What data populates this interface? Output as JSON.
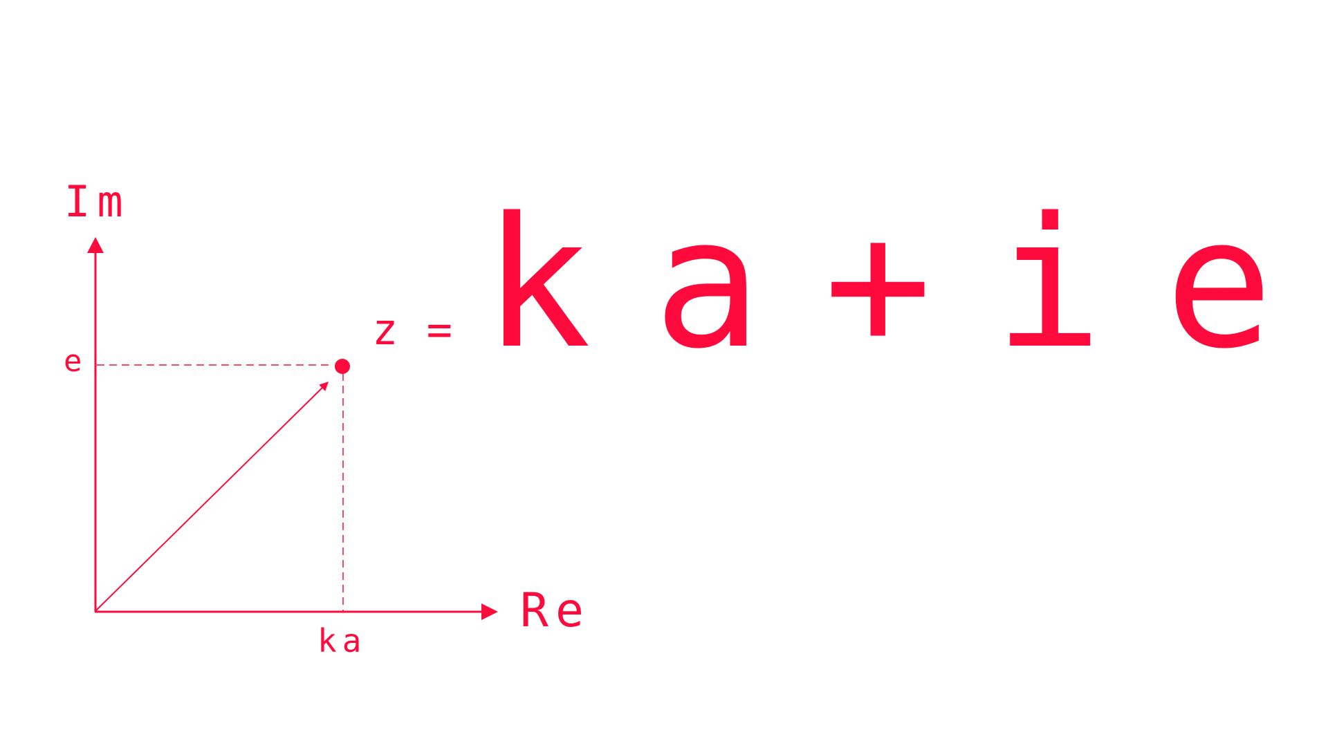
{
  "colors": {
    "accent": "#ff0a3c",
    "background": "#ffffff"
  },
  "diagram": {
    "axes": {
      "y_label": "Im",
      "x_label": "Re"
    },
    "point": {
      "real_label": "ka",
      "imag_label": "e"
    },
    "formula": {
      "lhs": "z =",
      "rhs": "ka+ie"
    }
  }
}
